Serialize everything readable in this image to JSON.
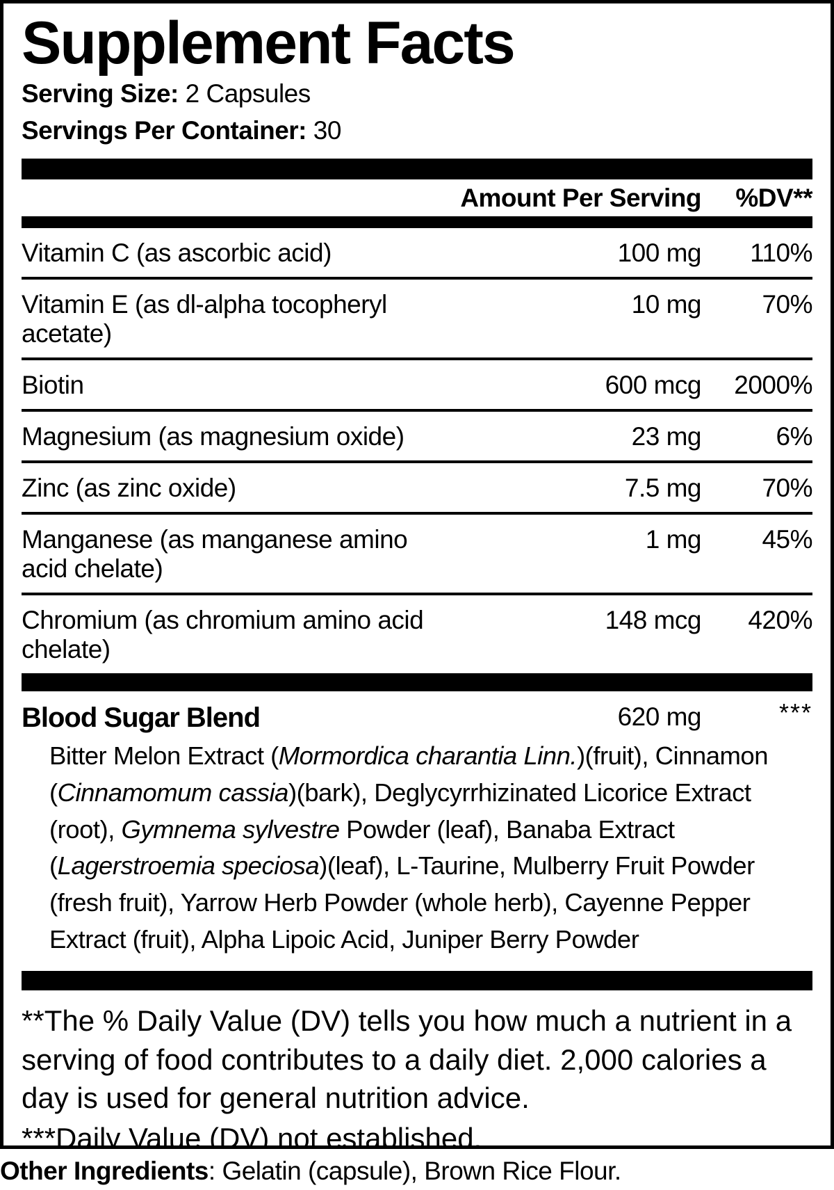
{
  "title": "Supplement Facts",
  "serving": {
    "size_label": "Serving Size:",
    "size_value": " 2 Capsules",
    "per_container_label": "Servings Per Container:",
    "per_container_value": " 30"
  },
  "table": {
    "header": {
      "amount": "Amount Per Serving",
      "dv": "%DV**"
    },
    "rows": [
      {
        "name": "Vitamin C (as ascorbic acid)",
        "amount": "100 mg",
        "dv": "110%"
      },
      {
        "name": "Vitamin E (as dl-alpha tocopheryl acetate)",
        "amount": "10 mg",
        "dv": "70%"
      },
      {
        "name": "Biotin",
        "amount": "600 mcg",
        "dv": "2000%"
      },
      {
        "name": "Magnesium (as magnesium oxide)",
        "amount": "23 mg",
        "dv": "6%"
      },
      {
        "name": "Zinc (as zinc oxide)",
        "amount": "7.5 mg",
        "dv": "70%"
      },
      {
        "name": "Manganese (as manganese amino acid chelate)",
        "amount": "1 mg",
        "dv": "45%"
      },
      {
        "name": "Chromium (as chromium amino acid chelate)",
        "amount": "148 mcg",
        "dv": "420%"
      }
    ]
  },
  "blend": {
    "name": "Blood Sugar Blend",
    "amount": "620 mg",
    "dv": "***",
    "description_segments": [
      {
        "text": "Bitter Melon Extract ("
      },
      {
        "text": "Mormordica charantia Linn.",
        "italic": true
      },
      {
        "text": ")(fruit), Cinnamon ("
      },
      {
        "text": "Cinnamomum cassia",
        "italic": true
      },
      {
        "text": ")(bark), Deglycyrrhizinated Licorice Extract (root), "
      },
      {
        "text": "Gymnema sylvestre",
        "italic": true
      },
      {
        "text": " Powder (leaf), Banaba Extract ("
      },
      {
        "text": "Lagerstroemia speciosa",
        "italic": true
      },
      {
        "text": ")(leaf), L-Taurine, Mulberry Fruit Powder (fresh fruit), Yarrow Herb Powder (whole herb), Cayenne Pepper Extract (fruit), Alpha Lipoic Acid, Juniper Berry Powder"
      }
    ]
  },
  "footnotes": {
    "dv_note": "**The % Daily Value (DV) tells you how much a nutrient in a serving of food contributes to a daily diet. 2,000 calories a day is used for general nutrition advice.",
    "not_established_note": "***Daily Value (DV) not established."
  },
  "other_ingredients": {
    "label": "Other Ingredients",
    "text": ": Gelatin (capsule), Brown Rice Flour."
  },
  "colors": {
    "text": "#000000",
    "background": "#ffffff"
  }
}
